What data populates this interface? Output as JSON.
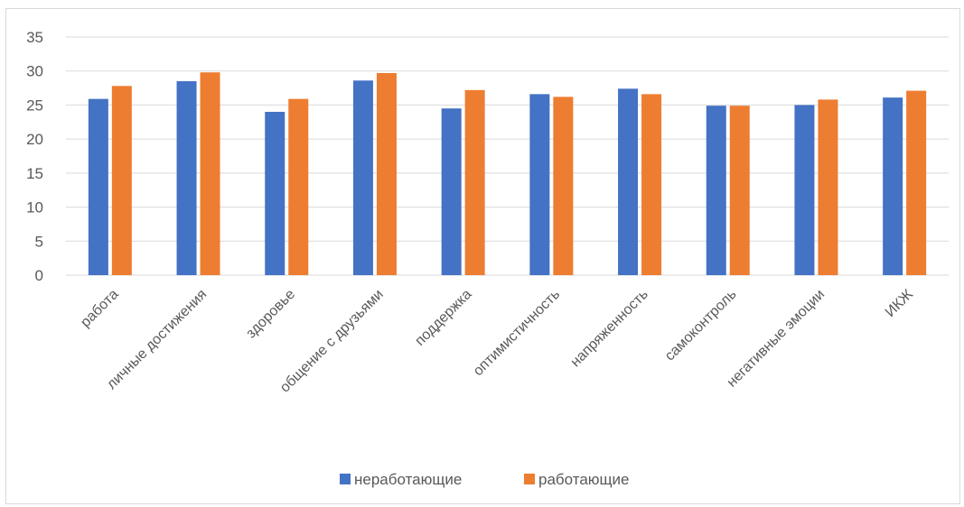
{
  "chart_data": {
    "type": "bar",
    "categories": [
      "работа",
      "личные достижения",
      "здоровье",
      "общение с друзьями",
      "поддержка",
      "оптимистичность",
      "напряженность",
      "самоконтроль",
      "негативные эмоции",
      "ИКЖ"
    ],
    "series": [
      {
        "name": "неработающие",
        "color": "#4472C4",
        "values": [
          25.9,
          28.5,
          24.0,
          28.6,
          24.5,
          26.6,
          27.4,
          24.9,
          25.0,
          26.1
        ]
      },
      {
        "name": "работающие",
        "color": "#ED7D31",
        "values": [
          27.8,
          29.8,
          25.9,
          29.7,
          27.2,
          26.2,
          26.6,
          24.9,
          25.8,
          27.1
        ]
      }
    ],
    "yticks": [
      "0",
      "5",
      "10",
      "15",
      "20",
      "25",
      "30",
      "35"
    ],
    "ylim": [
      0,
      35
    ],
    "grid": true,
    "legend_position": "bottom"
  }
}
